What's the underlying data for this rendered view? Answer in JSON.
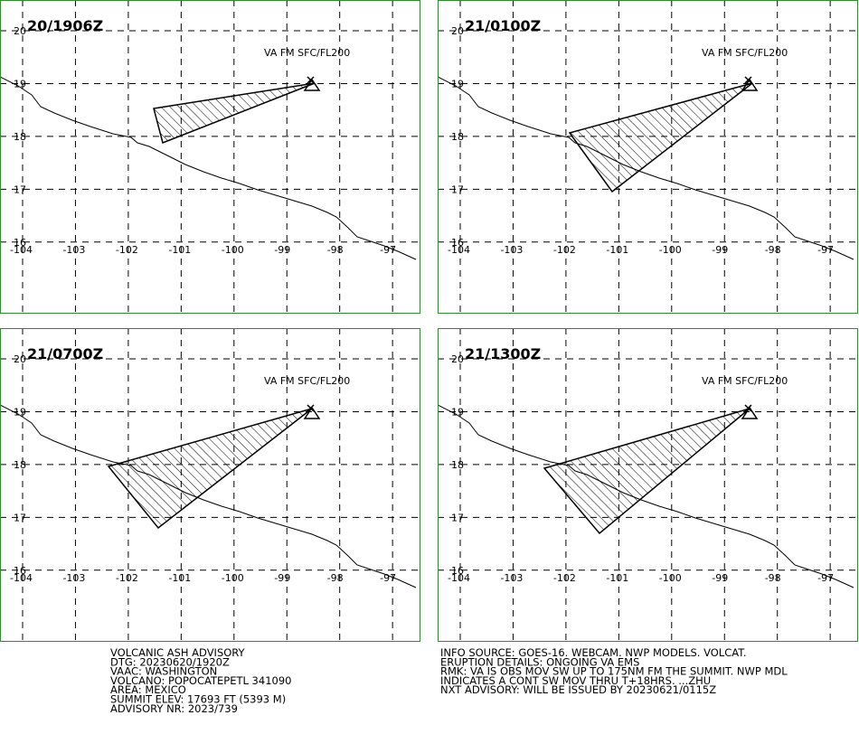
{
  "panels": [
    {
      "title": "20/1906Z",
      "level": "VA FM SFC/FL200"
    },
    {
      "title": "21/0100Z",
      "level": "VA FM SFC/FL200"
    },
    {
      "title": "21/0700Z",
      "level": "VA FM SFC/FL200"
    },
    {
      "title": "21/1300Z",
      "level": "VA FM SFC/FL200"
    }
  ],
  "lat_labels": [
    20,
    19,
    18,
    17,
    16
  ],
  "lon_labels": [
    -104,
    -103,
    -102,
    -101,
    -100,
    -99,
    -98,
    -97
  ],
  "advisory_left": [
    "VOLCANIC ASH ADVISORY",
    "DTG: 20230620/1920Z",
    "VAAC: WASHINGTON",
    "VOLCANO: POPOCATEPETL 341090",
    "AREA: MEXICO",
    "SUMMIT ELEV: 17693 FT (5393 M)",
    "ADVISORY NR: 2023/739"
  ],
  "advisory_right": [
    "INFO SOURCE: GOES-16. WEBCAM. NWP MODELS. VOLCAT.",
    "ERUPTION DETAILS: ONGOING VA EMS",
    "RMK: VA IS OBS MOV SW UP TO 175NM FM THE SUMMIT. NWP MDL",
    "INDICATES A CONT SW MOV THRU T+18HRS. ...ZHU",
    "NXT ADVISORY: WILL BE ISSUED BY 20230621/0115Z"
  ]
}
